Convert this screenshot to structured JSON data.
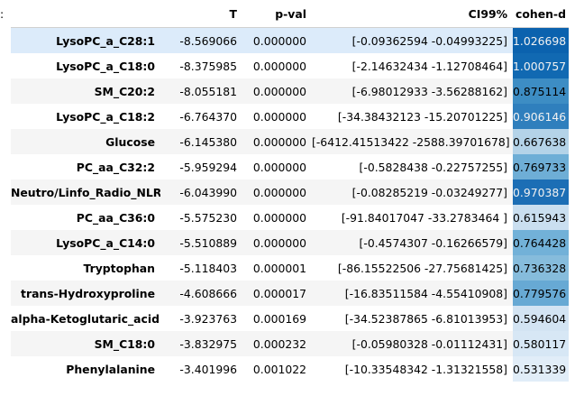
{
  "prompt_marker": ":",
  "table": {
    "index_header": "",
    "columns": [
      "T",
      "p-val",
      "CI99%",
      "cohen-d"
    ],
    "rows": [
      {
        "label": "LysoPC_a_C28:1",
        "T": "-8.569066",
        "p": "0.000000",
        "ci": "[-0.09362594 -0.04993225]",
        "d": "1.026698",
        "d_bg": "#0b62ae",
        "d_fg": "#f1f1f1"
      },
      {
        "label": "LysoPC_a_C18:0",
        "T": "-8.375985",
        "p": "0.000000",
        "ci": "[-2.14632434 -1.12708464]",
        "d": "1.000757",
        "d_bg": "#1169b2",
        "d_fg": "#f1f1f1"
      },
      {
        "label": "SM_C20:2",
        "T": "-8.055181",
        "p": "0.000000",
        "ci": "[-6.98012933 -3.56288162]",
        "d": "0.875114",
        "d_bg": "#3d8dc4",
        "d_fg": "#000000"
      },
      {
        "label": "LysoPC_a_C18:2",
        "T": "-6.764370",
        "p": "0.000000",
        "ci": "[-34.38432123 -15.20701225]",
        "d": "0.906146",
        "d_bg": "#2f7fbd",
        "d_fg": "#f1f1f1"
      },
      {
        "label": "Glucose",
        "T": "-6.145380",
        "p": "0.000000",
        "ci": "[-6412.41513422 -2588.39701678]",
        "d": "0.667638",
        "d_bg": "#b4d3e8",
        "d_fg": "#000000"
      },
      {
        "label": "PC_aa_C32:2",
        "T": "-5.959294",
        "p": "0.000000",
        "ci": "[-0.5828438 -0.22757255]",
        "d": "0.769733",
        "d_bg": "#6eaed6",
        "d_fg": "#000000"
      },
      {
        "label": "Neutro/Linfo_Radio_NLR",
        "T": "-6.043990",
        "p": "0.000000",
        "ci": "[-0.08285219 -0.03249277]",
        "d": "0.970387",
        "d_bg": "#1c6eb5",
        "d_fg": "#f1f1f1"
      },
      {
        "label": "PC_aa_C36:0",
        "T": "-5.575230",
        "p": "0.000000",
        "ci": "[-91.84017047 -33.2783464 ]",
        "d": "0.615943",
        "d_bg": "#cadff0",
        "d_fg": "#000000"
      },
      {
        "label": "LysoPC_a_C14:0",
        "T": "-5.510889",
        "p": "0.000000",
        "ci": "[-0.4574307 -0.16266579]",
        "d": "0.764428",
        "d_bg": "#72b1d8",
        "d_fg": "#000000"
      },
      {
        "label": "Tryptophan",
        "T": "-5.118403",
        "p": "0.000001",
        "ci": "[-86.15522506 -27.75681425]",
        "d": "0.736328",
        "d_bg": "#86bcdc",
        "d_fg": "#000000"
      },
      {
        "label": "trans-Hydroxyproline",
        "T": "-4.608666",
        "p": "0.000017",
        "ci": "[-16.83511584 -4.55410908]",
        "d": "0.779576",
        "d_bg": "#67a9d4",
        "d_fg": "#000000"
      },
      {
        "label": "alpha-Ketoglutaric_acid",
        "T": "-3.923763",
        "p": "0.000169",
        "ci": "[-34.52387865 -6.81013953]",
        "d": "0.594604",
        "d_bg": "#d3e4f3",
        "d_fg": "#000000"
      },
      {
        "label": "SM_C18:0",
        "T": "-3.832975",
        "p": "0.000232",
        "ci": "[-0.05980328 -0.01112431]",
        "d": "0.580117",
        "d_bg": "#d7e7f5",
        "d_fg": "#000000"
      },
      {
        "label": "Phenylalanine",
        "T": "-3.401996",
        "p": "0.001022",
        "ci": "[-10.33548342 -1.31321558]",
        "d": "0.531339",
        "d_bg": "#e1edf8",
        "d_fg": "#000000"
      }
    ],
    "hover_row_index": 0,
    "hover_row_color": "#dcebfa",
    "stripe_color": "#f5f5f5"
  }
}
